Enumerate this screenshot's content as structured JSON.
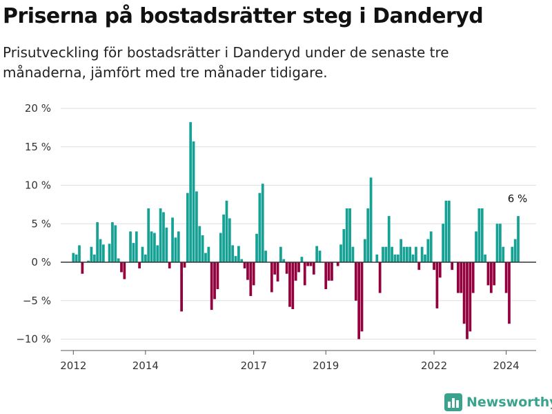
{
  "header": {
    "title": "Priserna på bostadsrätter steg i Danderyd",
    "subtitle": "Prisutveckling för bostadsrätter i Danderyd under de senaste tre månaderna, jämfört med tre månader tidigare."
  },
  "brand": {
    "name": "Newsworthy",
    "icon": "newsworthy-logo-icon"
  },
  "colors": {
    "positive": "#16a195",
    "negative": "#94003e",
    "grid": "#dddddd",
    "zero_line": "#333333",
    "brand": "#3aa38e"
  },
  "chart_data": {
    "type": "bar",
    "title": "Priserna på bostadsrätter steg i Danderyd",
    "subtitle": "Prisutveckling för bostadsrätter i Danderyd under de senaste tre månaderna, jämfört med tre månader tidigare.",
    "xlabel": "",
    "ylabel": "",
    "y_unit": "%",
    "ylim": [
      -11,
      20
    ],
    "xlim": [
      2011.65,
      2024.83
    ],
    "grid": true,
    "legend": "none",
    "y_ticks": [
      {
        "value": 20,
        "label": "20 %"
      },
      {
        "value": 15,
        "label": "15 %"
      },
      {
        "value": 10,
        "label": "10 %"
      },
      {
        "value": 5,
        "label": "5 %"
      },
      {
        "value": 0,
        "label": "0 %"
      },
      {
        "value": -5,
        "label": "−5 %"
      },
      {
        "value": -10,
        "label": "−10 %"
      }
    ],
    "x_ticks": [
      {
        "value": 2012,
        "label": "2012"
      },
      {
        "value": 2014,
        "label": "2014"
      },
      {
        "value": 2017,
        "label": "2017"
      },
      {
        "value": 2019,
        "label": "2019"
      },
      {
        "value": 2022,
        "label": "2022"
      },
      {
        "value": 2024,
        "label": "2024"
      }
    ],
    "start": "2012-01",
    "values": [
      1.2,
      1.0,
      2.2,
      -1.5,
      0,
      0.2,
      2.0,
      1.0,
      5.2,
      3.0,
      2.3,
      0,
      2.4,
      5.2,
      4.8,
      0.5,
      -1.3,
      -2.2,
      0,
      4.0,
      2.5,
      4.0,
      -0.8,
      2.0,
      1.0,
      7.0,
      4.0,
      3.8,
      2.2,
      7.0,
      6.5,
      4.5,
      -0.8,
      5.8,
      3.2,
      4.0,
      -6.4,
      -0.7,
      9.0,
      18.2,
      15.7,
      9.2,
      4.7,
      3.5,
      1.2,
      2.0,
      -6.2,
      -4.8,
      -3.5,
      3.8,
      6.2,
      8.0,
      5.7,
      2.2,
      0.8,
      2.1,
      0.4,
      -0.8,
      -2.3,
      -4.4,
      -3.0,
      3.7,
      9.0,
      10.2,
      1.5,
      0,
      -3.9,
      -1.6,
      -2.5,
      2.0,
      0.4,
      -1.5,
      -5.8,
      -6.1,
      -2.4,
      -1.3,
      0.7,
      -3.0,
      -0.5,
      -0.5,
      -1.6,
      2.1,
      1.5,
      0,
      -3.5,
      -2.4,
      -2.4,
      0,
      -0.5,
      2.3,
      4.3,
      7.0,
      7.0,
      2.0,
      -5.0,
      -10.0,
      -9.0,
      3.0,
      7.0,
      11.0,
      0,
      1.0,
      -4.0,
      2.0,
      2.0,
      6.0,
      2.0,
      1.0,
      1.0,
      3.0,
      2.0,
      2.0,
      2.0,
      1.0,
      2.0,
      -1.0,
      2.0,
      1.0,
      3.0,
      4.0,
      -1.0,
      -6.0,
      -2.0,
      5.0,
      8.0,
      8.0,
      -1.0,
      0,
      -4.0,
      -4.0,
      -8.0,
      -10.0,
      -9.0,
      -4.0,
      4.0,
      7.0,
      7.0,
      1.0,
      -3.0,
      -4.0,
      -3.0,
      5.0,
      5.0,
      2.0,
      -4.0,
      -8.0,
      2.0,
      3.0,
      6.0
    ],
    "annotation": {
      "label": "6 %",
      "target": "last"
    }
  }
}
